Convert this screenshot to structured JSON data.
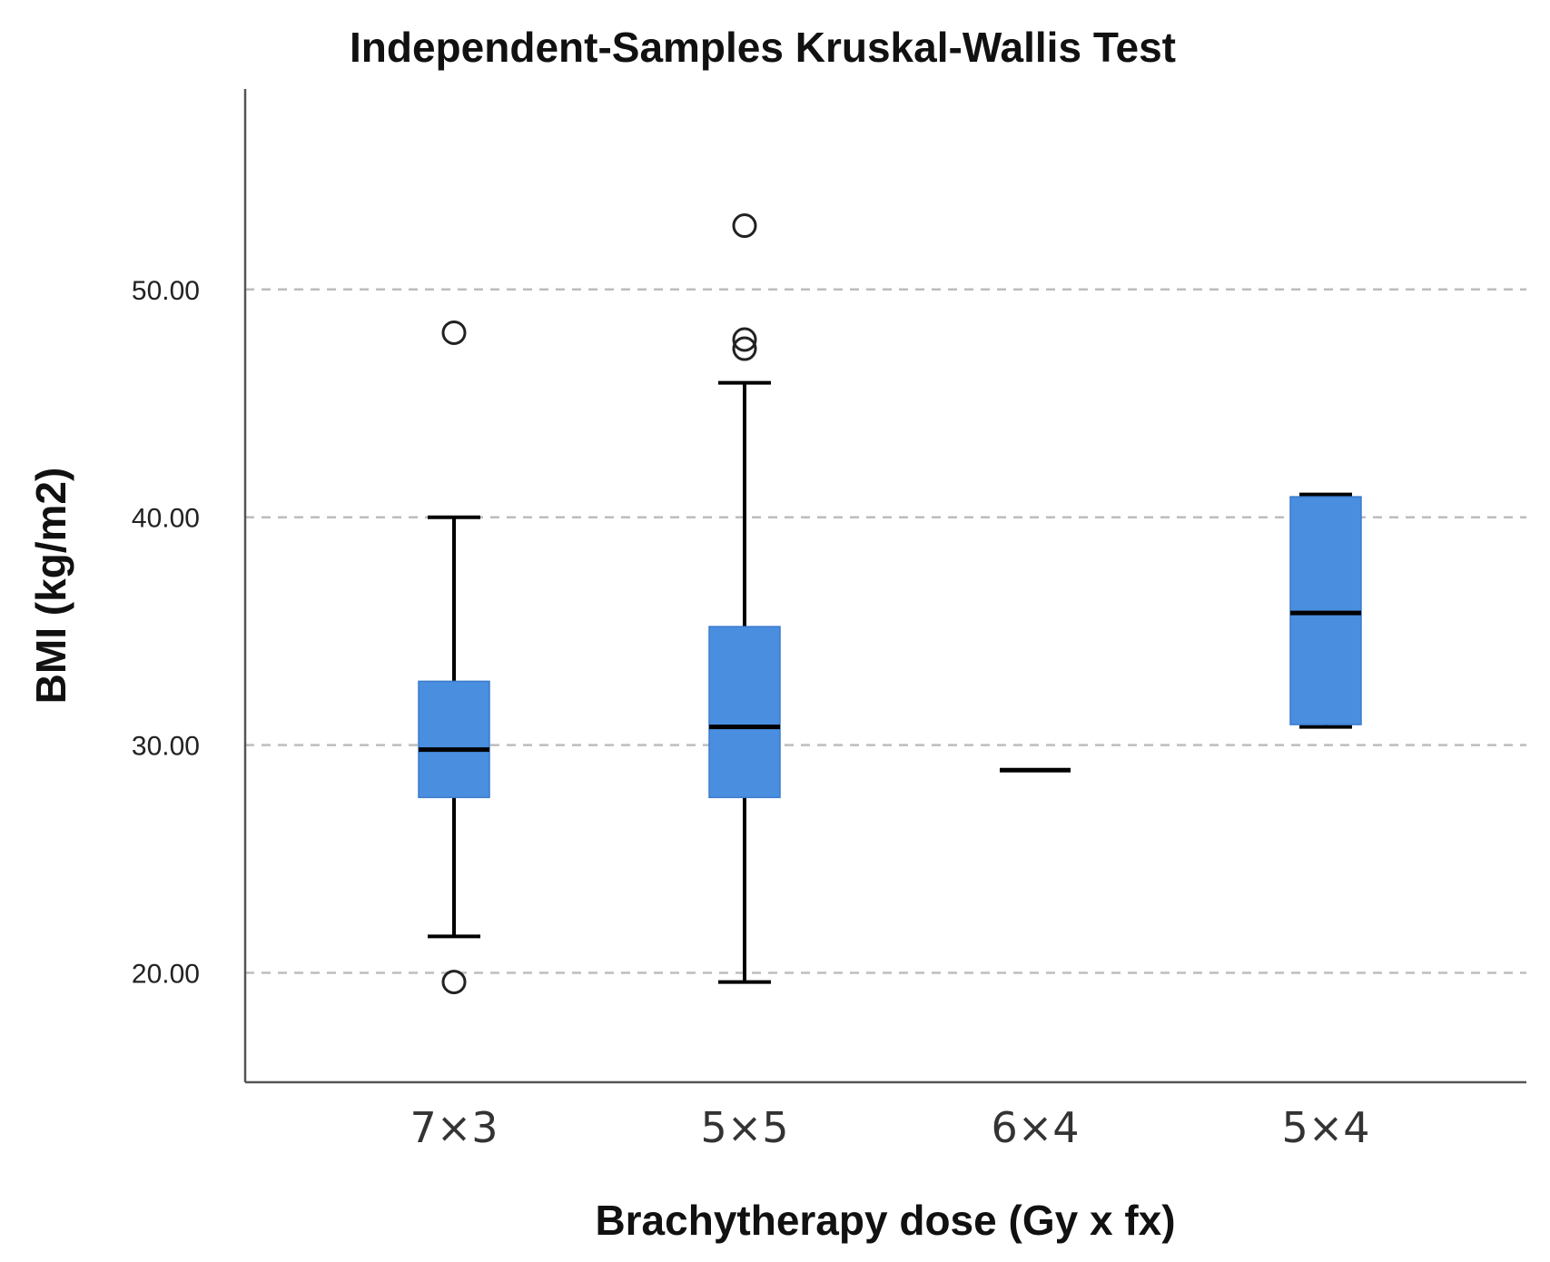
{
  "chart_data": {
    "type": "box",
    "title": "Independent-Samples Kruskal-Wallis Test",
    "xlabel": "Brachytherapy dose (Gy x fx)",
    "ylabel": "BMI (kg/m2)",
    "ylim": [
      15.2,
      58.8
    ],
    "yticks": [
      20,
      30,
      40,
      50
    ],
    "ytick_labels": [
      "20.00",
      "30.00",
      "40.00",
      "50.00"
    ],
    "grid": "dashed horizontal at y ticks",
    "box_color": "#4a8ee0",
    "categories": [
      "7×3",
      "5×5",
      "6×4",
      "5×4"
    ],
    "boxes": [
      {
        "category": "7×3",
        "q1": 27.7,
        "median": 29.8,
        "q3": 32.8,
        "whisker_low": 21.6,
        "whisker_high": 40.0,
        "outliers": [
          48.1,
          19.6
        ]
      },
      {
        "category": "5×5",
        "q1": 27.7,
        "median": 30.8,
        "q3": 35.2,
        "whisker_low": 19.6,
        "whisker_high": 45.9,
        "outliers": [
          52.8,
          47.8,
          47.4
        ]
      },
      {
        "category": "6×4",
        "q1": 28.9,
        "median": 28.9,
        "q3": 28.9,
        "whisker_low": 28.9,
        "whisker_high": 28.9,
        "outliers": []
      },
      {
        "category": "5×4",
        "q1": 30.9,
        "median": 35.8,
        "q3": 40.9,
        "whisker_low": 30.8,
        "whisker_high": 41.0,
        "outliers": []
      }
    ]
  }
}
